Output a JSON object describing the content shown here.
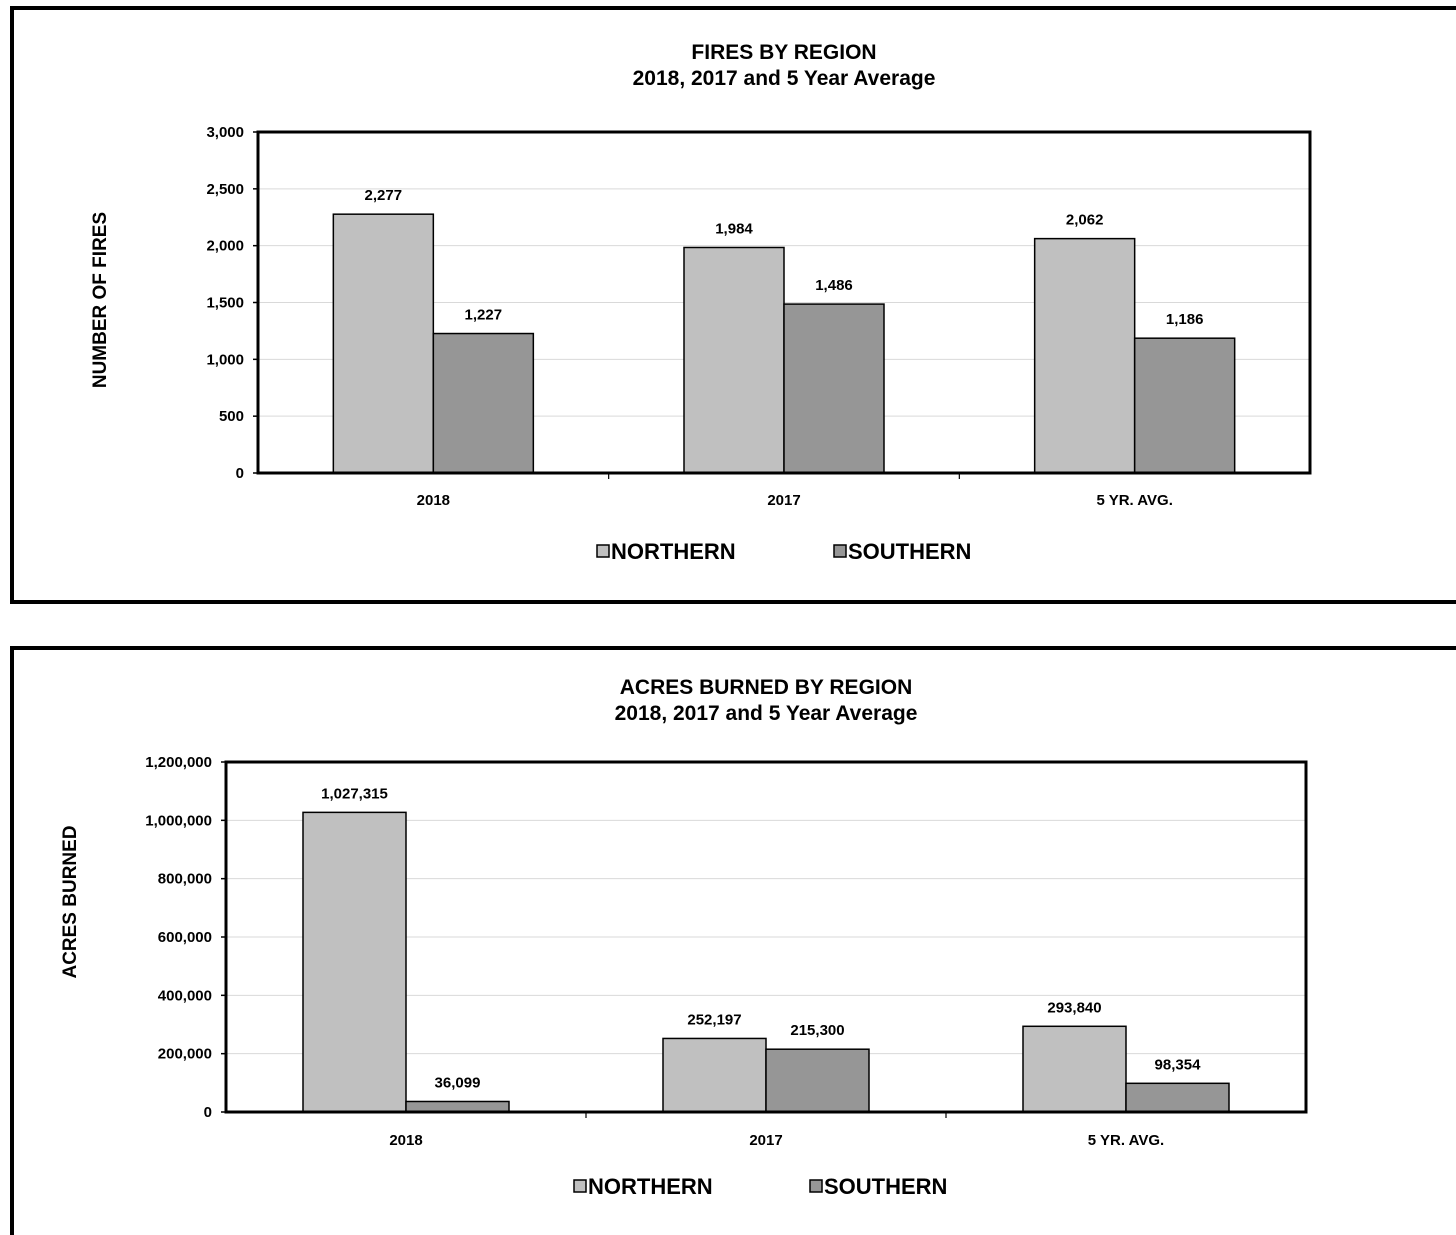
{
  "chart_data": [
    {
      "type": "bar",
      "title": "FIRES BY REGION",
      "subtitle": "2018, 2017 and 5 Year Average",
      "ylabel": "NUMBER OF FIRES",
      "categories": [
        "2018",
        "2017",
        "5 YR. AVG."
      ],
      "series": [
        {
          "name": "NORTHERN",
          "values": [
            2277,
            1984,
            2062
          ],
          "labels": [
            "2,277",
            "1,984",
            "2,062"
          ],
          "color": "#c0c0c0"
        },
        {
          "name": "SOUTHERN",
          "values": [
            1227,
            1486,
            1186
          ],
          "labels": [
            "1,227",
            "1,486",
            "1,186"
          ],
          "color": "#969696"
        }
      ],
      "ylim": [
        0,
        3000
      ],
      "yticks": [
        0,
        500,
        1000,
        1500,
        2000,
        2500,
        3000
      ],
      "ytick_labels": [
        "0",
        "500",
        "1,000",
        "1,500",
        "2,000",
        "2,500",
        "3,000"
      ],
      "grid": true,
      "legend": "bottom"
    },
    {
      "type": "bar",
      "title": "ACRES BURNED BY REGION",
      "subtitle": "2018, 2017 and 5 Year Average",
      "ylabel": "ACRES BURNED",
      "categories": [
        "2018",
        "2017",
        "5 YR. AVG."
      ],
      "series": [
        {
          "name": "NORTHERN",
          "values": [
            1027315,
            252197,
            293840
          ],
          "labels": [
            "1,027,315",
            "252,197",
            "293,840"
          ],
          "color": "#c0c0c0"
        },
        {
          "name": "SOUTHERN",
          "values": [
            36099,
            215300,
            98354
          ],
          "labels": [
            "36,099",
            "215,300",
            "98,354"
          ],
          "color": "#969696"
        }
      ],
      "ylim": [
        0,
        1200000
      ],
      "yticks": [
        0,
        200000,
        400000,
        600000,
        800000,
        1000000,
        1200000
      ],
      "ytick_labels": [
        "0",
        "200,000",
        "400,000",
        "600,000",
        "800,000",
        "1,000,000",
        "1,200,000"
      ],
      "grid": true,
      "legend": "bottom"
    }
  ]
}
